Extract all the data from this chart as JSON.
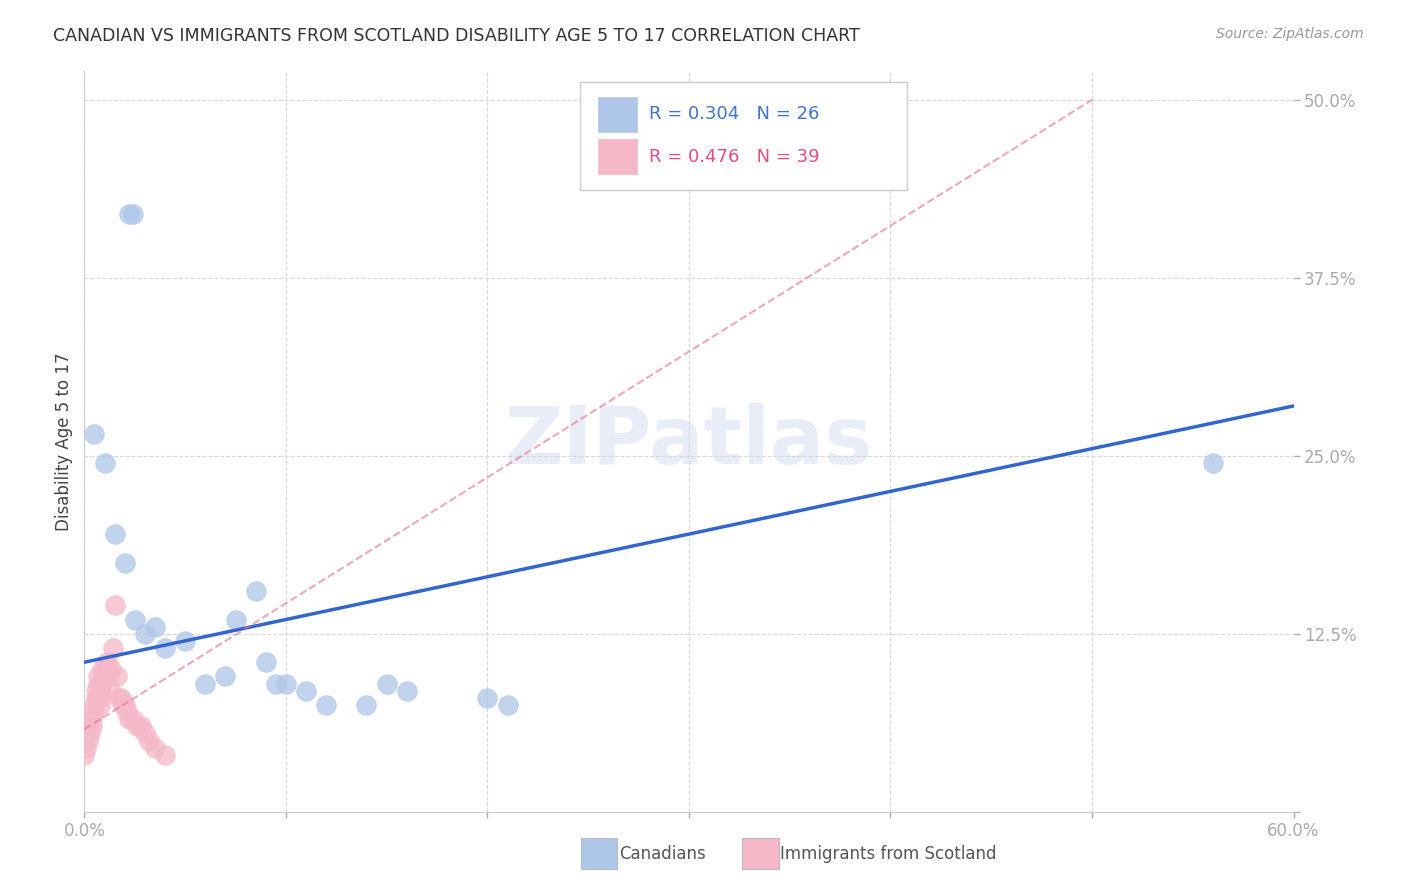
{
  "title": "CANADIAN VS IMMIGRANTS FROM SCOTLAND DISABILITY AGE 5 TO 17 CORRELATION CHART",
  "source": "Source: ZipAtlas.com",
  "ylabel": "Disability Age 5 to 17",
  "xlim": [
    0.0,
    0.6
  ],
  "ylim": [
    0.0,
    0.52
  ],
  "xticks": [
    0.0,
    0.1,
    0.2,
    0.3,
    0.4,
    0.5,
    0.6
  ],
  "xticklabels": [
    "0.0%",
    "",
    "",
    "",
    "",
    "",
    "60.0%"
  ],
  "yticks": [
    0.0,
    0.125,
    0.25,
    0.375,
    0.5
  ],
  "yticklabels": [
    "",
    "12.5%",
    "25.0%",
    "37.5%",
    "50.0%"
  ],
  "watermark": "ZIPatlas",
  "legend_R1": "R = 0.304",
  "legend_N1": "N = 26",
  "legend_R2": "R = 0.476",
  "legend_N2": "N = 39",
  "canadians_color": "#aec6e8",
  "canadians_edge": "#aec6e8",
  "immigrants_color": "#f4b8c8",
  "immigrants_edge": "#f4b8c8",
  "trend_canadian_color": "#3366cc",
  "trend_immigrant_color": "#e07090",
  "canadians_x": [
    0.022,
    0.024,
    0.005,
    0.01,
    0.015,
    0.02,
    0.025,
    0.03,
    0.035,
    0.04,
    0.05,
    0.06,
    0.07,
    0.075,
    0.085,
    0.09,
    0.095,
    0.1,
    0.11,
    0.12,
    0.14,
    0.15,
    0.16,
    0.2,
    0.21,
    0.56
  ],
  "canadians_y": [
    0.42,
    0.42,
    0.265,
    0.245,
    0.195,
    0.175,
    0.135,
    0.125,
    0.13,
    0.115,
    0.12,
    0.09,
    0.095,
    0.135,
    0.155,
    0.105,
    0.09,
    0.09,
    0.085,
    0.075,
    0.075,
    0.09,
    0.085,
    0.08,
    0.075,
    0.245
  ],
  "immigrants_x": [
    0.0,
    0.001,
    0.002,
    0.003,
    0.004,
    0.004,
    0.005,
    0.005,
    0.006,
    0.006,
    0.007,
    0.007,
    0.008,
    0.008,
    0.008,
    0.009,
    0.009,
    0.01,
    0.01,
    0.011,
    0.012,
    0.013,
    0.013,
    0.014,
    0.015,
    0.016,
    0.017,
    0.018,
    0.019,
    0.02,
    0.021,
    0.022,
    0.024,
    0.026,
    0.028,
    0.03,
    0.032,
    0.035,
    0.04
  ],
  "immigrants_y": [
    0.04,
    0.045,
    0.05,
    0.055,
    0.06,
    0.065,
    0.07,
    0.075,
    0.08,
    0.085,
    0.09,
    0.095,
    0.075,
    0.08,
    0.085,
    0.09,
    0.1,
    0.095,
    0.1,
    0.105,
    0.095,
    0.1,
    0.085,
    0.115,
    0.145,
    0.095,
    0.08,
    0.08,
    0.075,
    0.075,
    0.07,
    0.065,
    0.065,
    0.06,
    0.06,
    0.055,
    0.05,
    0.045,
    0.04
  ],
  "canadian_trend_x": [
    0.0,
    0.6
  ],
  "canadian_trend_y": [
    0.105,
    0.285
  ],
  "immigrant_trend_x": [
    0.0,
    0.5
  ],
  "immigrant_trend_y": [
    0.058,
    0.5
  ],
  "background_color": "#ffffff",
  "grid_color": "#d8d8d8"
}
